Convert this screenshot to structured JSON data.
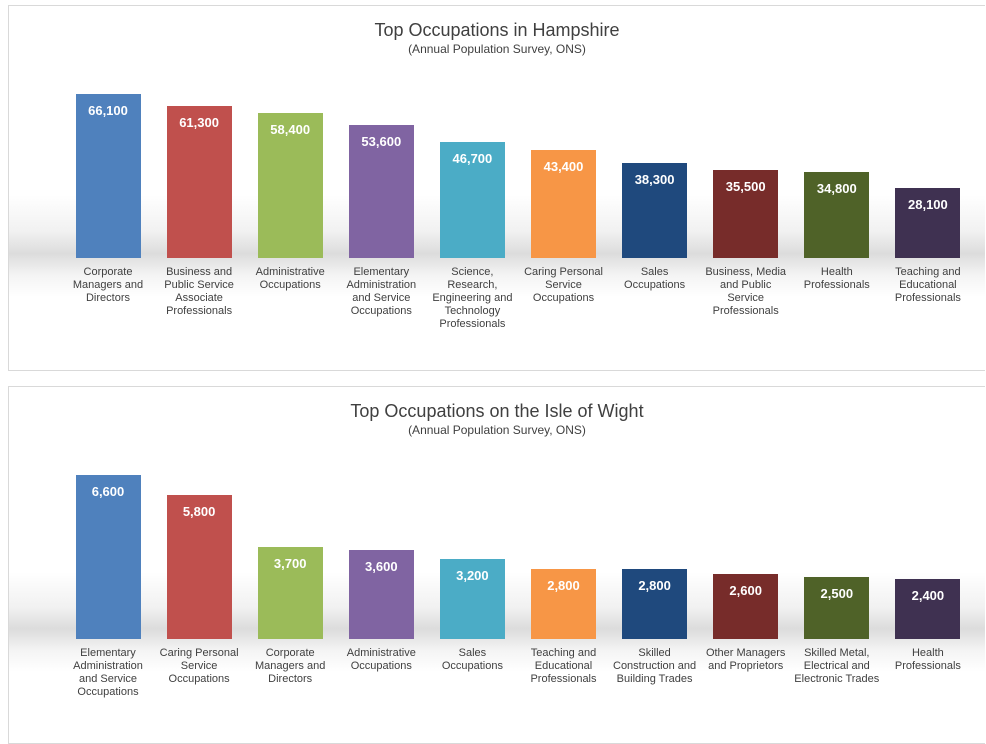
{
  "chart_data": [
    {
      "type": "bar",
      "title": "Top Occupations in Hampshire",
      "subtitle": "(Annual Population Survey, ONS)",
      "categories": [
        "Corporate Managers and Directors",
        "Business and Public Service Associate Professionals",
        "Administrative Occupations",
        "Elementary Administration and Service Occupations",
        "Science, Research, Engineering and Technology Professionals",
        "Caring Personal Service Occupations",
        "Sales Occupations",
        "Business, Media and Public Service Professionals",
        "Health Professionals",
        "Teaching and Educational Professionals"
      ],
      "values": [
        66100,
        61300,
        58400,
        53600,
        46700,
        43400,
        38300,
        35500,
        34800,
        28100
      ],
      "value_labels": [
        "66,100",
        "61,300",
        "58,400",
        "53,600",
        "46,700",
        "43,400",
        "38,300",
        "35,500",
        "34,800",
        "28,100"
      ],
      "colors": [
        "#4f81bd",
        "#c0504d",
        "#9bbb59",
        "#8064a2",
        "#4bacc6",
        "#f79646",
        "#1f497d",
        "#772c2a",
        "#4f6228",
        "#3f3151"
      ]
    },
    {
      "type": "bar",
      "title": "Top Occupations on the Isle of Wight",
      "subtitle": "(Annual Population Survey, ONS)",
      "categories": [
        "Elementary Administration and Service Occupations",
        "Caring Personal Service Occupations",
        "Corporate Managers and Directors",
        "Administrative Occupations",
        "Sales Occupations",
        "Teaching and Educational Professionals",
        "Skilled Construction and Building Trades",
        "Other Managers and Proprietors",
        "Skilled Metal, Electrical and Electronic Trades",
        "Health Professionals"
      ],
      "values": [
        6600,
        5800,
        3700,
        3600,
        3200,
        2800,
        2800,
        2600,
        2500,
        2400
      ],
      "value_labels": [
        "6,600",
        "5,800",
        "3,700",
        "3,600",
        "3,200",
        "2,800",
        "2,800",
        "2,600",
        "2,500",
        "2,400"
      ],
      "colors": [
        "#4f81bd",
        "#c0504d",
        "#9bbb59",
        "#8064a2",
        "#4bacc6",
        "#f79646",
        "#1f497d",
        "#772c2a",
        "#4f6228",
        "#3f3151"
      ]
    }
  ]
}
